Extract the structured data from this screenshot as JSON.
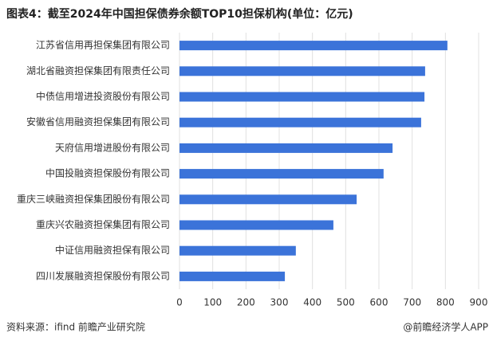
{
  "chart_data": {
    "type": "barh",
    "title": "图表4：截至2024年中国担保债券余额TOP10担保机构(单位：亿元)",
    "categories": [
      "江苏省信用再担保集团有限公司",
      "湖北省融资担保集团有限责任公司",
      "中债信用增进投资股份有限公司",
      "安徽省信用融资担保集团有限公司",
      "天府信用增进股份有限公司",
      "中国投融资担保股份有限公司",
      "重庆三峡融资担保集团股份有限公司",
      "重庆兴农融资担保集团有限公司",
      "中证信用融资担保有限公司",
      "四川发展融资担保股份有限公司"
    ],
    "values": [
      806,
      739,
      737,
      727,
      641,
      614,
      533,
      463,
      350,
      317
    ],
    "color": "#3b73d9",
    "xlim": [
      0,
      900
    ],
    "xticks": [
      0,
      100,
      200,
      300,
      400,
      500,
      600,
      700,
      800,
      900
    ],
    "grid": true,
    "source": "资料来源：ifind 前瞻产业研究院",
    "credit": "@前瞻经济学人APP"
  }
}
